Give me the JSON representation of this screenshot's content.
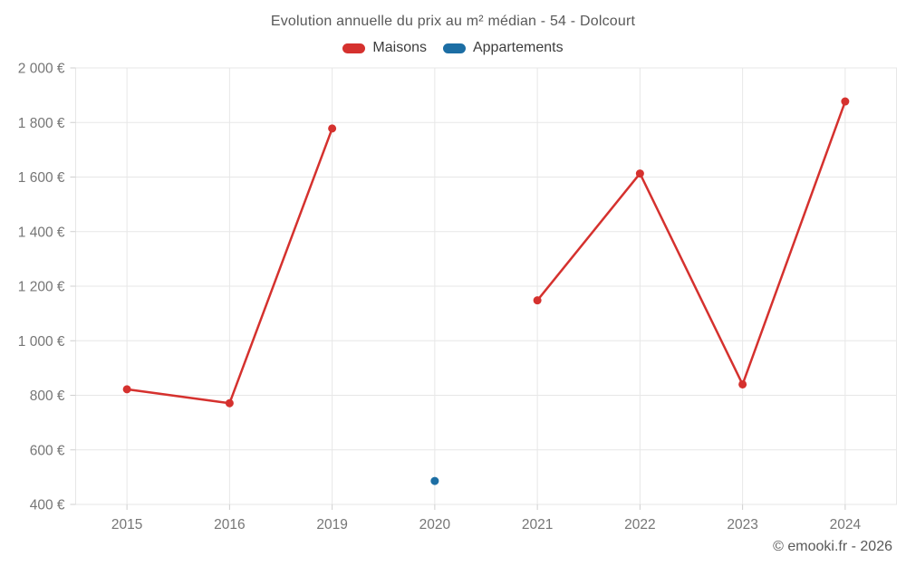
{
  "chart_data": {
    "type": "line",
    "title": "Evolution annuelle du prix au m² médian - 54 - Dolcourt",
    "credit": "© emooki.fr - 2026",
    "categories": [
      "2015",
      "2016",
      "2019",
      "2020",
      "2021",
      "2022",
      "2023",
      "2024"
    ],
    "series": [
      {
        "name": "Maisons",
        "color": "#d5312e",
        "values": [
          822,
          771,
          1778,
          null,
          1148,
          1613,
          840,
          1877
        ]
      },
      {
        "name": "Appartements",
        "color": "#1c6ea4",
        "values": [
          null,
          null,
          null,
          486,
          null,
          null,
          null,
          null
        ]
      }
    ],
    "connect_nulls": false,
    "grid": true,
    "legend_position": "top",
    "xlabel": "",
    "ylabel": "",
    "ylim": [
      400,
      2000
    ],
    "y_axis": {
      "min": 400,
      "max": 2000,
      "step": 200,
      "tick_labels": [
        "400 €",
        "600 €",
        "800 €",
        "1 000 €",
        "1 200 €",
        "1 400 €",
        "1 600 €",
        "1 800 €",
        "2 000 €"
      ]
    }
  }
}
